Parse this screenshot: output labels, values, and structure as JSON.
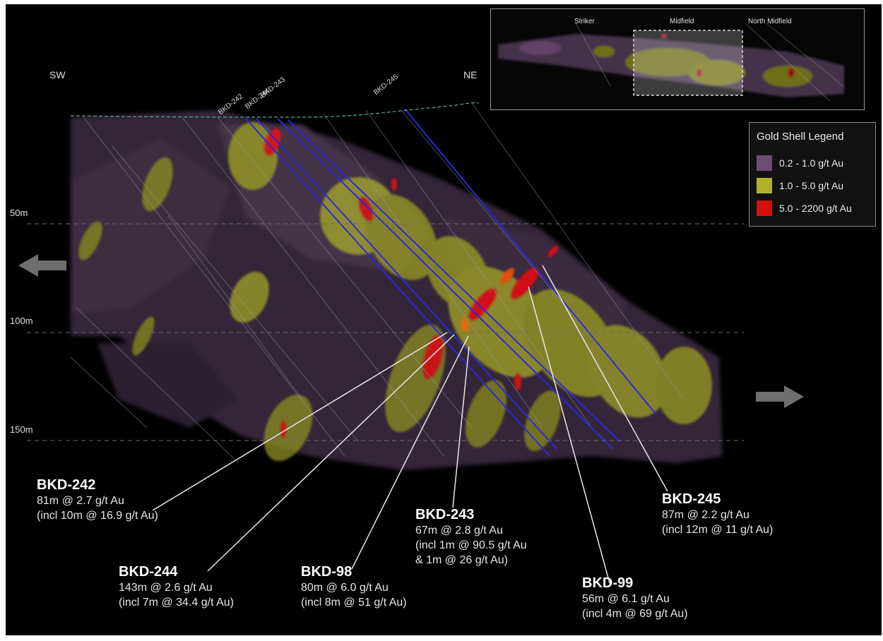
{
  "directions": {
    "left": "SW",
    "right": "NE"
  },
  "depths": [
    "50m",
    "100m",
    "150m"
  ],
  "collar_labels": [
    "BKD-242",
    "BKD-244",
    "BKD-243",
    "BKD-245"
  ],
  "inset": {
    "zones": [
      "Striker",
      "Midfield",
      "North Midfield"
    ]
  },
  "legend": {
    "title": "Gold Shell Legend",
    "items": [
      {
        "label": "0.2 - 1.0 g/t Au",
        "color": "#6b4d73"
      },
      {
        "label": "1.0 - 5.0 g/t Au",
        "color": "#b0b32a"
      },
      {
        "label": "5.0 - 2200 g/t Au",
        "color": "#d11010"
      }
    ]
  },
  "holes": [
    {
      "name": "BKD-242",
      "lines": [
        "81m @ 2.7 g/t Au",
        "(incl 10m @ 16.9 g/t Au)"
      ]
    },
    {
      "name": "BKD-244",
      "lines": [
        "143m @ 2.6 g/t Au",
        "(incl 7m @ 34.4 g/t Au)"
      ]
    },
    {
      "name": "BKD-98",
      "lines": [
        "80m @ 6.0 g/t Au",
        "(incl 8m @ 51 g/t Au)"
      ]
    },
    {
      "name": "BKD-243",
      "lines": [
        "67m @ 2.8 g/t Au",
        "(incl 1m @ 90.5 g/t Au",
        "& 1m @ 26 g/t Au)"
      ]
    },
    {
      "name": "BKD-99",
      "lines": [
        "56m @ 6.1 g/t Au",
        "(incl 4m @ 69 g/t Au)"
      ]
    },
    {
      "name": "BKD-245",
      "lines": [
        "87m @ 2.2 g/t Au",
        "(incl 12m @ 11 g/t Au)"
      ]
    }
  ]
}
